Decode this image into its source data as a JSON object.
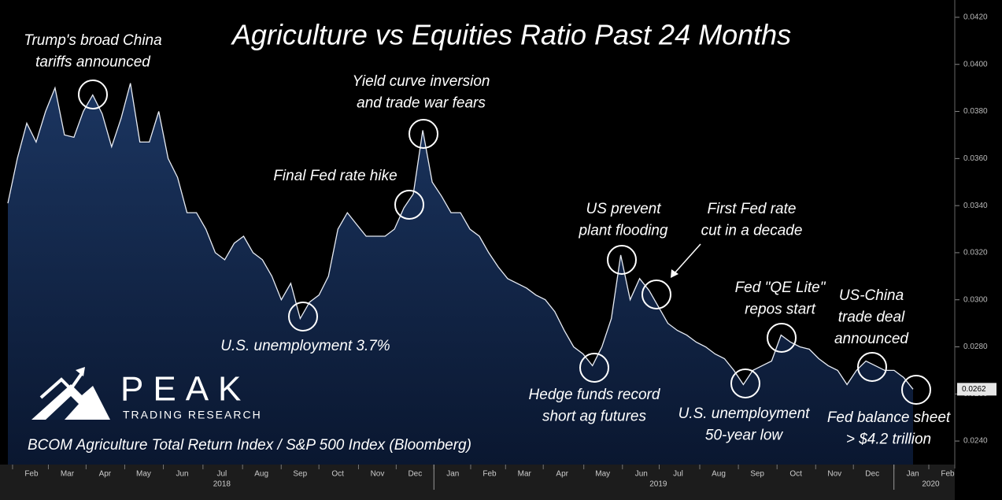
{
  "chart_data": {
    "type": "area",
    "title": "Agriculture vs Equities Ratio Past 24 Months",
    "source": "BCOM Agriculture Total Return Index / S&P 500 Index (Bloomberg)",
    "logo": {
      "name": "PEAK",
      "tagline": "TRADING RESEARCH"
    },
    "color": "#e8ecf4",
    "values": [
      0.0341,
      0.036,
      0.0375,
      0.0367,
      0.038,
      0.039,
      0.037,
      0.0369,
      0.038,
      0.0387,
      0.0379,
      0.0365,
      0.0377,
      0.0392,
      0.0367,
      0.0367,
      0.038,
      0.036,
      0.0352,
      0.0337,
      0.0337,
      0.033,
      0.032,
      0.0317,
      0.0324,
      0.0327,
      0.032,
      0.0317,
      0.031,
      0.03,
      0.0307,
      0.0292,
      0.0299,
      0.0302,
      0.031,
      0.033,
      0.0337,
      0.0332,
      0.0327,
      0.0327,
      0.0327,
      0.033,
      0.0339,
      0.0345,
      0.0372,
      0.035,
      0.0344,
      0.0337,
      0.0337,
      0.033,
      0.0327,
      0.032,
      0.0314,
      0.0309,
      0.0307,
      0.0305,
      0.0302,
      0.03,
      0.0295,
      0.0287,
      0.028,
      0.0277,
      0.0272,
      0.028,
      0.0292,
      0.0319,
      0.03,
      0.0309,
      0.0304,
      0.0297,
      0.029,
      0.0287,
      0.0285,
      0.0282,
      0.028,
      0.0277,
      0.0275,
      0.027,
      0.0264,
      0.027,
      0.0272,
      0.0274,
      0.0285,
      0.0282,
      0.028,
      0.0279,
      0.0275,
      0.0272,
      0.027,
      0.0264,
      0.027,
      0.0274,
      0.0272,
      0.027,
      0.027,
      0.0267,
      0.0262
    ],
    "last_label": "0.0262",
    "xlim": [
      0,
      100.2
    ],
    "xticks": [
      {
        "value": 2.5,
        "label": "Feb"
      },
      {
        "value": 6.3,
        "label": "Mar"
      },
      {
        "value": 10.3,
        "label": "Apr"
      },
      {
        "value": 14.4,
        "label": "May"
      },
      {
        "value": 18.5,
        "label": "Jun"
      },
      {
        "value": 22.7,
        "label": "Jul"
      },
      {
        "value": 26.9,
        "label": "Aug"
      },
      {
        "value": 31.0,
        "label": "Sep"
      },
      {
        "value": 35.0,
        "label": "Oct"
      },
      {
        "value": 39.2,
        "label": "Nov"
      },
      {
        "value": 43.2,
        "label": "Dec"
      },
      {
        "value": 47.2,
        "label": "Jan"
      },
      {
        "value": 51.1,
        "label": "Feb"
      },
      {
        "value": 54.8,
        "label": "Mar"
      },
      {
        "value": 58.8,
        "label": "Apr"
      },
      {
        "value": 63.1,
        "label": "May"
      },
      {
        "value": 67.2,
        "label": "Jun"
      },
      {
        "value": 71.1,
        "label": "Jul"
      },
      {
        "value": 75.4,
        "label": "Aug"
      },
      {
        "value": 79.5,
        "label": "Sep"
      },
      {
        "value": 83.6,
        "label": "Oct"
      },
      {
        "value": 87.7,
        "label": "Nov"
      },
      {
        "value": 91.7,
        "label": "Dec"
      },
      {
        "value": 96.0,
        "label": "Jan"
      },
      {
        "value": 99.7,
        "label": "Feb"
      }
    ],
    "years": [
      {
        "value": 22.7,
        "label": "2018"
      },
      {
        "value": 69.0,
        "label": "2019"
      },
      {
        "value": 97.9,
        "label": "2020"
      }
    ],
    "ylim": [
      0.023,
      0.0424
    ],
    "yticks": [
      {
        "value": 0.024,
        "label": "0.0240"
      },
      {
        "value": 0.026,
        "label": "0.0260"
      },
      {
        "value": 0.028,
        "label": "0.0280"
      },
      {
        "value": 0.03,
        "label": "0.0300"
      },
      {
        "value": 0.032,
        "label": "0.0320"
      },
      {
        "value": 0.034,
        "label": "0.0340"
      },
      {
        "value": 0.036,
        "label": "0.0360"
      },
      {
        "value": 0.038,
        "label": "0.0380"
      },
      {
        "value": 0.04,
        "label": "0.0400"
      },
      {
        "value": 0.042,
        "label": "0.0420"
      }
    ],
    "annotations": [
      {
        "lines": [
          "Trump's broad China",
          "tariffs announced"
        ]
      },
      {
        "lines": [
          "Yield curve inversion",
          "and trade war fears"
        ]
      },
      {
        "lines": [
          "Final Fed rate hike"
        ]
      },
      {
        "lines": [
          "US prevent",
          "plant flooding"
        ]
      },
      {
        "lines": [
          "First Fed rate",
          "cut in a decade"
        ]
      },
      {
        "lines": [
          "Fed \"QE Lite\"",
          "repos start"
        ]
      },
      {
        "lines": [
          "US-China",
          "trade deal",
          "announced"
        ]
      },
      {
        "lines": [
          "U.S. unemployment 3.7%"
        ]
      },
      {
        "lines": [
          "Hedge funds record",
          "short ag futures"
        ]
      },
      {
        "lines": [
          "U.S. unemployment",
          "50-year low"
        ]
      },
      {
        "lines": [
          "Fed balance sheet",
          "> $4.2 trillion"
        ]
      }
    ]
  }
}
